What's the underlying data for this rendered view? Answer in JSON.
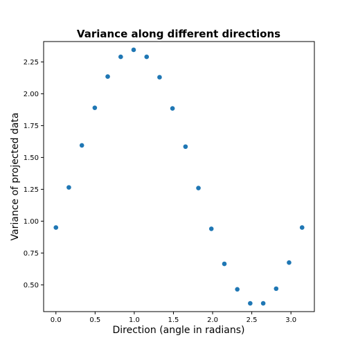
{
  "chart_data": {
    "type": "scatter",
    "title": "Variance along different directions",
    "xlabel": "Direction (angle in radians)",
    "ylabel": "Variance of projected data",
    "xlim": [
      -0.157,
      3.299
    ],
    "ylim": [
      0.29,
      2.41
    ],
    "x_ticks": [
      0.0,
      0.5,
      1.0,
      1.5,
      2.0,
      2.5,
      3.0
    ],
    "x_tick_labels": [
      "0.0",
      "0.5",
      "1.0",
      "1.5",
      "2.0",
      "2.5",
      "3.0"
    ],
    "y_ticks": [
      0.5,
      0.75,
      1.0,
      1.25,
      1.5,
      1.75,
      2.0,
      2.25
    ],
    "y_tick_labels": [
      "0.50",
      "0.75",
      "1.00",
      "1.25",
      "1.50",
      "1.75",
      "2.00",
      "2.25"
    ],
    "marker_color": "#1f77b4",
    "grid": false,
    "series": [
      {
        "x": [
          0.0,
          0.165,
          0.331,
          0.496,
          0.661,
          0.827,
          0.992,
          1.158,
          1.323,
          1.488,
          1.654,
          1.819,
          1.984,
          2.15,
          2.315,
          2.48,
          2.646,
          2.811,
          2.976,
          3.142
        ],
        "y": [
          0.95,
          1.265,
          1.595,
          1.89,
          2.135,
          2.29,
          2.345,
          2.29,
          2.13,
          1.885,
          1.585,
          1.26,
          0.94,
          0.665,
          0.465,
          0.355,
          0.355,
          0.47,
          0.675,
          0.95
        ]
      }
    ]
  }
}
